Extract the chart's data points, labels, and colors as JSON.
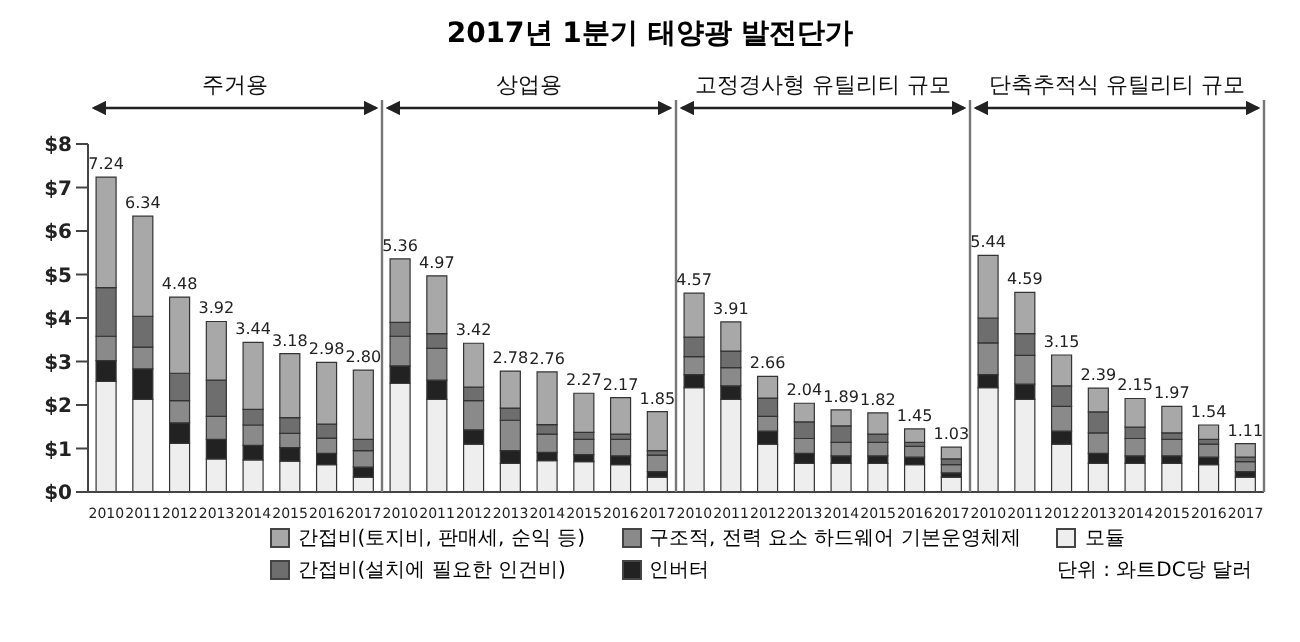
{
  "chart_data": {
    "type": "bar",
    "title": "2017년 1분기 태양광 발전단가",
    "stacked": true,
    "categories": [
      "2010",
      "2011",
      "2012",
      "2013",
      "2014",
      "2015",
      "2016",
      "2017",
      "2010",
      "2011",
      "2012",
      "2013",
      "2014",
      "2015",
      "2016",
      "2017",
      "2010",
      "2011",
      "2012",
      "2013",
      "2014",
      "2015",
      "2016",
      "2017",
      "2010",
      "2011",
      "2012",
      "2013",
      "2014",
      "2015",
      "2016",
      "2017"
    ],
    "series": [
      {
        "name": "모듈",
        "color": "#eeeeee",
        "values": [
          2.54,
          2.13,
          1.12,
          0.76,
          0.74,
          0.71,
          0.63,
          0.34,
          2.5,
          2.13,
          1.1,
          0.66,
          0.72,
          0.7,
          0.63,
          0.34,
          2.4,
          2.13,
          1.1,
          0.66,
          0.66,
          0.66,
          0.63,
          0.34,
          2.4,
          2.13,
          1.1,
          0.66,
          0.66,
          0.66,
          0.63,
          0.34
        ]
      },
      {
        "name": "인버터",
        "color": "#222222",
        "values": [
          0.48,
          0.7,
          0.47,
          0.45,
          0.33,
          0.31,
          0.26,
          0.23,
          0.4,
          0.44,
          0.33,
          0.29,
          0.19,
          0.16,
          0.2,
          0.13,
          0.3,
          0.31,
          0.3,
          0.23,
          0.17,
          0.17,
          0.17,
          0.1,
          0.3,
          0.35,
          0.3,
          0.23,
          0.17,
          0.17,
          0.17,
          0.13
        ]
      },
      {
        "name": "구조적, 전력 요소 하드웨어 기본운영체제",
        "color": "#8a8a8a",
        "values": [
          0.56,
          0.5,
          0.51,
          0.53,
          0.47,
          0.33,
          0.35,
          0.38,
          0.68,
          0.73,
          0.67,
          0.7,
          0.42,
          0.35,
          0.38,
          0.38,
          0.41,
          0.42,
          0.34,
          0.34,
          0.31,
          0.31,
          0.25,
          0.19,
          0.73,
          0.66,
          0.57,
          0.47,
          0.4,
          0.38,
          0.3,
          0.23
        ]
      },
      {
        "name": "간접비(설치에 필요한 인건비)",
        "color": "#6e6e6e",
        "values": [
          1.12,
          0.71,
          0.63,
          0.83,
          0.36,
          0.36,
          0.32,
          0.26,
          0.32,
          0.34,
          0.31,
          0.28,
          0.22,
          0.16,
          0.12,
          0.1,
          0.45,
          0.38,
          0.42,
          0.38,
          0.38,
          0.19,
          0.09,
          0.13,
          0.57,
          0.5,
          0.47,
          0.48,
          0.26,
          0.15,
          0.11,
          0.1
        ]
      },
      {
        "name": "간접비(토지비, 판매세, 순익 등)",
        "color": "#a8a8a8",
        "values": [
          2.54,
          2.3,
          1.75,
          1.35,
          1.54,
          1.47,
          1.42,
          1.59,
          1.46,
          1.33,
          1.01,
          0.85,
          1.21,
          0.9,
          0.84,
          0.9,
          1.01,
          0.67,
          0.5,
          0.43,
          0.37,
          0.49,
          0.31,
          0.27,
          1.44,
          0.95,
          0.71,
          0.55,
          0.66,
          0.61,
          0.33,
          0.31
        ]
      }
    ],
    "totals": [
      "7.24",
      "6.34",
      "4.48",
      "3.92",
      "3.44",
      "3.18",
      "2.98",
      "2.80",
      "5.36",
      "4.97",
      "3.42",
      "2.78",
      "2.76",
      "2.27",
      "2.17",
      "1.85",
      "4.57",
      "3.91",
      "2.66",
      "2.04",
      "1.89",
      "1.82",
      "1.45",
      "1.03",
      "5.44",
      "4.59",
      "3.15",
      "2.39",
      "2.15",
      "1.97",
      "1.54",
      "1.11"
    ],
    "ylim": [
      0,
      8
    ],
    "yticks": [
      {
        "value": 0,
        "label": "$0"
      },
      {
        "value": 1,
        "label": "$1"
      },
      {
        "value": 2,
        "label": "$2"
      },
      {
        "value": 3,
        "label": "$3"
      },
      {
        "value": 4,
        "label": "$4"
      },
      {
        "value": 5,
        "label": "$5"
      },
      {
        "value": 6,
        "label": "$6"
      },
      {
        "value": 7,
        "label": "$7"
      },
      {
        "value": 8,
        "label": "$8"
      }
    ],
    "annotations": [
      "주거용",
      "상업용",
      "고정경사형 유틸리티 규모",
      "단축추적식 유틸리티 규모",
      "단위 : 와트DC당 달러"
    ],
    "legend": "bottom"
  }
}
